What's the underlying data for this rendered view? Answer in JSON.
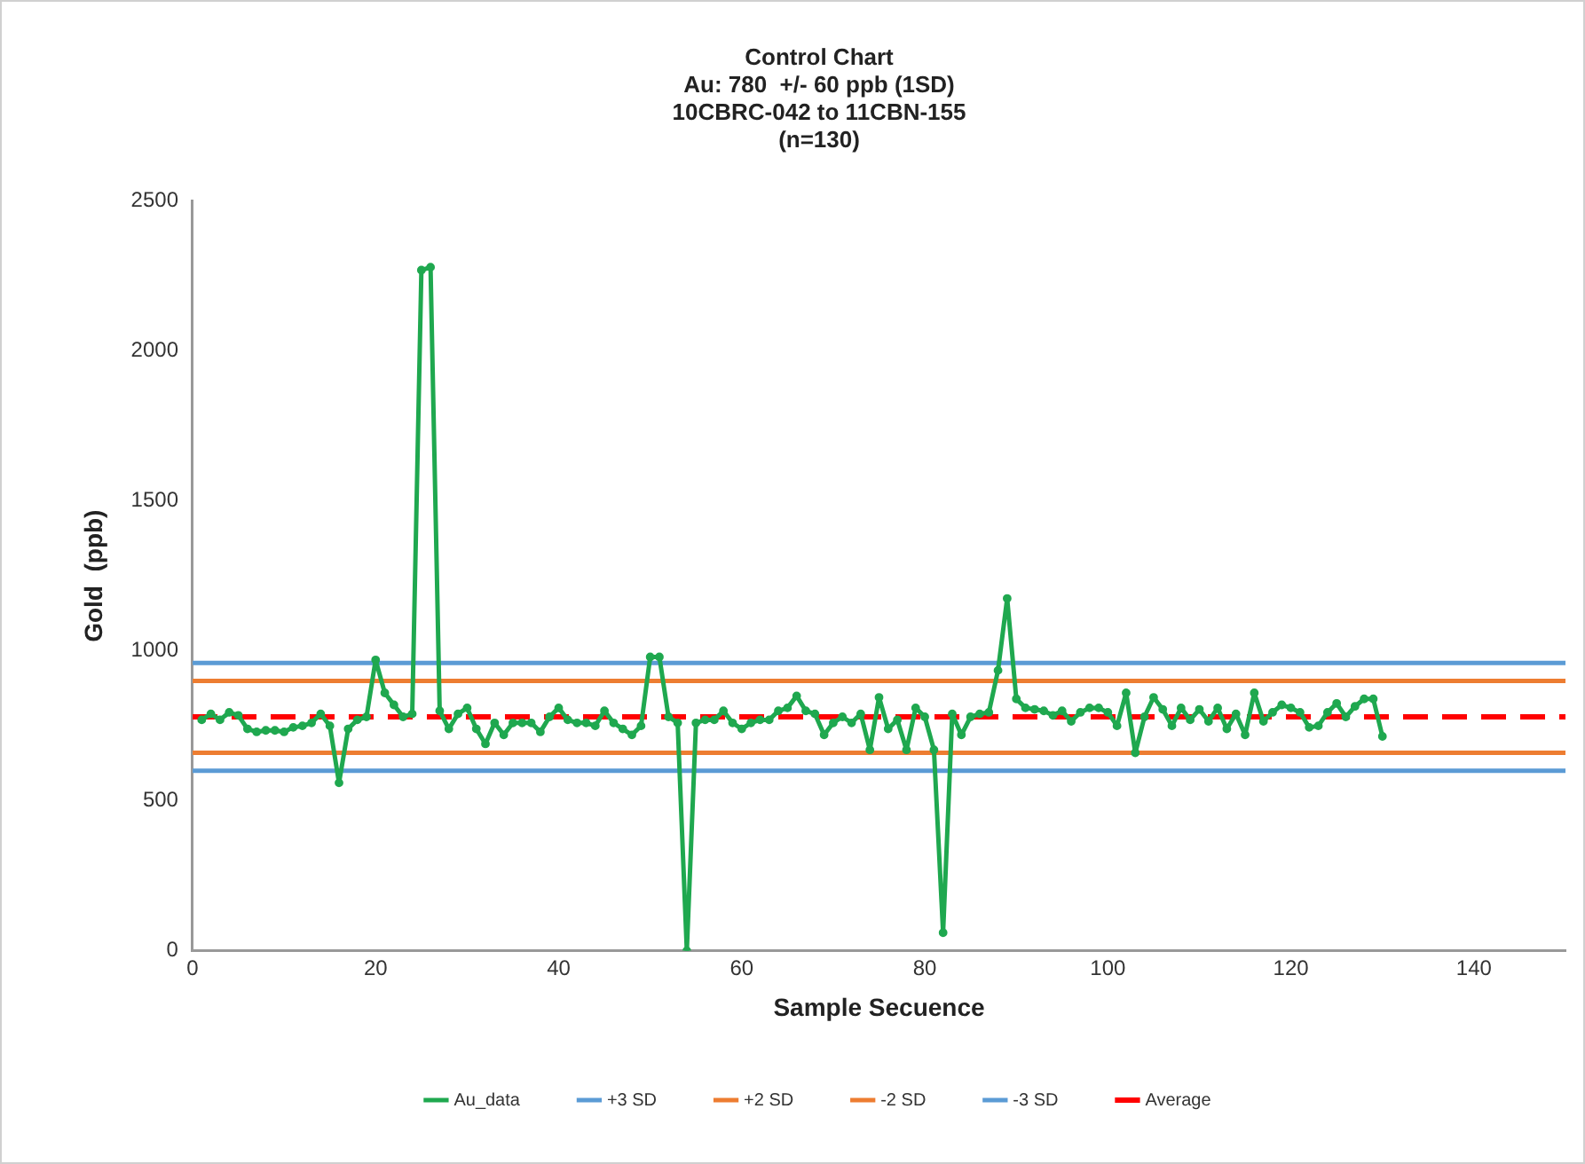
{
  "chart_data": {
    "type": "line",
    "title": "Control Chart",
    "subtitle": "Au: 780  +/- 60 ppb (1SD)\n10CBRC-042 to 11CBN-155\n(n=130)",
    "xlabel": "Sample Secuence",
    "ylabel": "Gold  (ppb)",
    "x": [
      1,
      2,
      3,
      4,
      5,
      6,
      7,
      8,
      9,
      10,
      11,
      12,
      13,
      14,
      15,
      16,
      17,
      18,
      19,
      20,
      21,
      22,
      23,
      24,
      25,
      26,
      27,
      28,
      29,
      30,
      31,
      32,
      33,
      34,
      35,
      36,
      37,
      38,
      39,
      40,
      41,
      42,
      43,
      44,
      45,
      46,
      47,
      48,
      49,
      50,
      51,
      52,
      53,
      54,
      55,
      56,
      57,
      58,
      59,
      60,
      61,
      62,
      63,
      64,
      65,
      66,
      67,
      68,
      69,
      70,
      71,
      72,
      73,
      74,
      75,
      76,
      77,
      78,
      79,
      80,
      81,
      82,
      83,
      84,
      85,
      86,
      87,
      88,
      89,
      90,
      91,
      92,
      93,
      94,
      95,
      96,
      97,
      98,
      99,
      100,
      101,
      102,
      103,
      104,
      105,
      106,
      107,
      108,
      109,
      110,
      111,
      112,
      113,
      114,
      115,
      116,
      117,
      118,
      119,
      120,
      121,
      122,
      123,
      124,
      125,
      126,
      127,
      128,
      129,
      130
    ],
    "series": [
      {
        "name": "Au_data",
        "color": "#1fa84f",
        "values": [
          770,
          790,
          770,
          795,
          785,
          740,
          730,
          735,
          735,
          730,
          745,
          750,
          760,
          790,
          750,
          560,
          740,
          770,
          780,
          970,
          860,
          820,
          780,
          790,
          2270,
          2280,
          800,
          740,
          790,
          810,
          740,
          690,
          760,
          720,
          760,
          760,
          760,
          730,
          780,
          810,
          770,
          760,
          760,
          750,
          800,
          760,
          740,
          720,
          750,
          980,
          980,
          780,
          760,
          0,
          760,
          770,
          770,
          800,
          760,
          740,
          760,
          770,
          770,
          800,
          810,
          850,
          800,
          790,
          720,
          760,
          780,
          760,
          790,
          670,
          845,
          740,
          770,
          670,
          810,
          780,
          670,
          60,
          790,
          720,
          780,
          790,
          795,
          935,
          1175,
          840,
          810,
          805,
          800,
          785,
          800,
          765,
          795,
          810,
          810,
          795,
          750,
          860,
          660,
          780,
          845,
          805,
          750,
          810,
          770,
          805,
          765,
          810,
          740,
          790,
          720,
          860,
          765,
          795,
          820,
          810,
          795,
          745,
          750,
          795,
          825,
          780,
          815,
          840,
          840,
          715
        ]
      }
    ],
    "ref_lines": [
      {
        "axis": "y",
        "value": 960,
        "label": "+3 SD",
        "color": "#5b9bd5"
      },
      {
        "axis": "y",
        "value": 900,
        "label": "+2 SD",
        "color": "#ed7d31"
      },
      {
        "axis": "y",
        "value": 660,
        "label": "-2 SD",
        "color": "#ed7d31"
      },
      {
        "axis": "y",
        "value": 600,
        "label": "-3 SD",
        "color": "#5b9bd5"
      },
      {
        "axis": "y",
        "value": 780,
        "label": "Average",
        "color": "#ff0000",
        "line_style": "dashed"
      }
    ],
    "xlim": [
      0,
      150
    ],
    "xticks": [
      0,
      20,
      40,
      60,
      80,
      100,
      120,
      140
    ],
    "ylim": [
      0,
      2500
    ],
    "yticks": [
      0,
      500,
      1000,
      1500,
      2000,
      2500
    ],
    "grid": false,
    "legend": "bottom",
    "marker": "circle",
    "line_style": "solid"
  }
}
